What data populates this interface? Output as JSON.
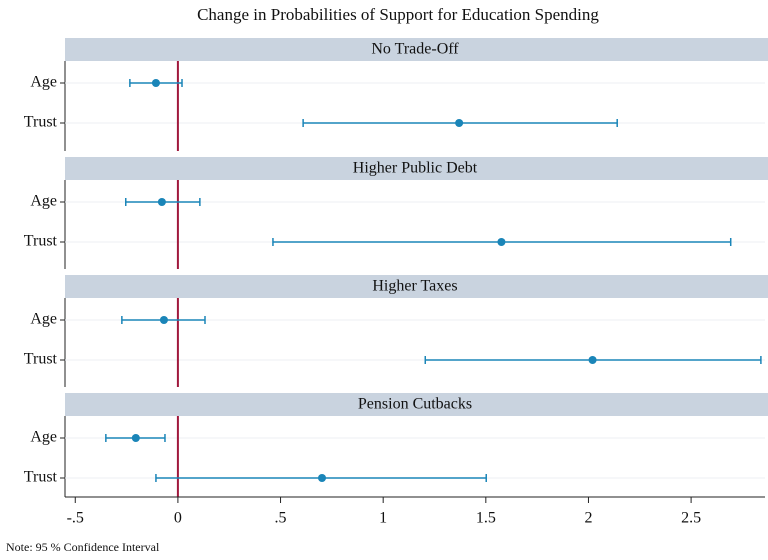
{
  "chart_data": {
    "type": "errorbar",
    "title": "Change in Probabilities of Support for Education Spending",
    "note": "Note: 95 % Confidence Interval",
    "categories": [
      "Age",
      "Trust"
    ],
    "color": "#1a85b8",
    "refline": 0,
    "refline_color": "#a0183c",
    "xlim": [
      -0.55,
      2.86
    ],
    "xticks": [
      {
        "value": -0.5,
        "label": "-.5"
      },
      0,
      {
        "value": 0.5,
        "label": ".5"
      },
      1,
      1.5,
      2,
      2.5
    ],
    "grid": true,
    "panels": [
      {
        "title": "No Trade-Off",
        "values": [
          -0.107,
          1.37
        ],
        "lower": [
          -0.234,
          0.61
        ],
        "upper": [
          0.02,
          2.14
        ]
      },
      {
        "title": "Higher Public Debt",
        "values": [
          -0.078,
          1.576
        ],
        "lower": [
          -0.254,
          0.463
        ],
        "upper": [
          0.107,
          2.693
        ]
      },
      {
        "title": "Higher Taxes",
        "values": [
          -0.068,
          2.02
        ],
        "lower": [
          -0.273,
          1.205
        ],
        "upper": [
          0.132,
          2.84
        ]
      },
      {
        "title": "Pension Cutbacks",
        "values": [
          -0.205,
          0.702
        ],
        "lower": [
          -0.351,
          -0.107
        ],
        "upper": [
          -0.063,
          1.502
        ]
      }
    ]
  }
}
